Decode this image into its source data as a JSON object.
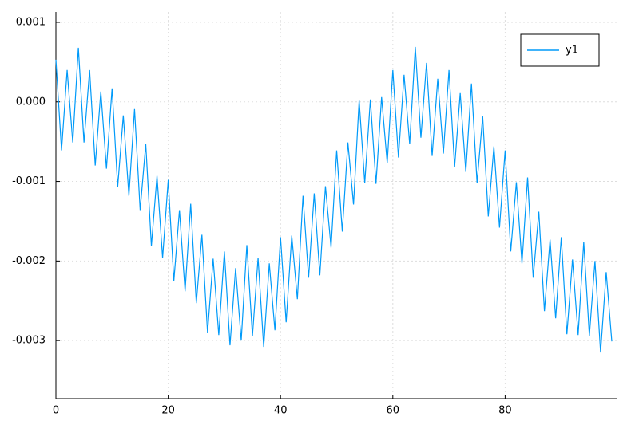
{
  "chart_data": {
    "type": "line",
    "x": [
      0,
      1,
      2,
      3,
      4,
      5,
      6,
      7,
      8,
      9,
      10,
      11,
      12,
      13,
      14,
      15,
      16,
      17,
      18,
      19,
      20,
      21,
      22,
      23,
      24,
      25,
      26,
      27,
      28,
      29,
      30,
      31,
      32,
      33,
      34,
      35,
      36,
      37,
      38,
      39,
      40,
      41,
      42,
      43,
      44,
      45,
      46,
      47,
      48,
      49,
      50,
      51,
      52,
      53,
      54,
      55,
      56,
      57,
      58,
      59,
      60,
      61,
      62,
      63,
      64,
      65,
      66,
      67,
      68,
      69,
      70,
      71,
      72,
      73,
      74,
      75,
      76,
      77,
      78,
      79,
      80,
      81,
      82,
      83,
      84,
      85,
      86,
      87,
      88,
      89,
      90,
      91,
      92,
      93,
      94,
      95,
      96,
      97,
      98,
      99
    ],
    "series": [
      {
        "name": "y1",
        "color": "#009af9",
        "values": [
          0.00053,
          -0.00061,
          0.0004,
          -0.00051,
          0.00068,
          -0.00051,
          0.0004,
          -0.0008,
          0.00013,
          -0.00084,
          0.00017,
          -0.00107,
          -0.00017,
          -0.00118,
          -9e-05,
          -0.00136,
          -0.00053,
          -0.00181,
          -0.00093,
          -0.00196,
          -0.00098,
          -0.00225,
          -0.00136,
          -0.00238,
          -0.00128,
          -0.00253,
          -0.00167,
          -0.0029,
          -0.00197,
          -0.00293,
          -0.00188,
          -0.00306,
          -0.00209,
          -0.003,
          -0.0018,
          -0.00294,
          -0.00196,
          -0.00308,
          -0.00203,
          -0.00287,
          -0.0017,
          -0.00277,
          -0.00168,
          -0.00248,
          -0.00118,
          -0.00221,
          -0.00115,
          -0.00218,
          -0.00106,
          -0.00183,
          -0.00061,
          -0.00163,
          -0.00051,
          -0.00129,
          2e-05,
          -0.00102,
          3e-05,
          -0.00103,
          6e-05,
          -0.00077,
          0.0004,
          -0.0007,
          0.00034,
          -0.00053,
          0.00069,
          -0.00045,
          0.00049,
          -0.00068,
          0.00029,
          -0.00065,
          0.0004,
          -0.00082,
          0.00011,
          -0.00088,
          0.00023,
          -0.00102,
          -0.00018,
          -0.00144,
          -0.00056,
          -0.00158,
          -0.00061,
          -0.00188,
          -0.00101,
          -0.00203,
          -0.00095,
          -0.00221,
          -0.00138,
          -0.00263,
          -0.00173,
          -0.00272,
          -0.0017,
          -0.00292,
          -0.00198,
          -0.00293,
          -0.00176,
          -0.00294,
          -0.002,
          -0.00315,
          -0.00214,
          -0.00301
        ]
      }
    ],
    "xlim": [
      0,
      100
    ],
    "xticks": [
      0,
      20,
      40,
      60,
      80
    ],
    "ylim": [
      -0.00373,
      0.00113
    ],
    "yticks": [
      0.001,
      {
        "value": 0,
        "label": "0.000"
      },
      -0.001,
      -0.002,
      -0.003
    ],
    "grid": true,
    "legend": "top-right"
  }
}
